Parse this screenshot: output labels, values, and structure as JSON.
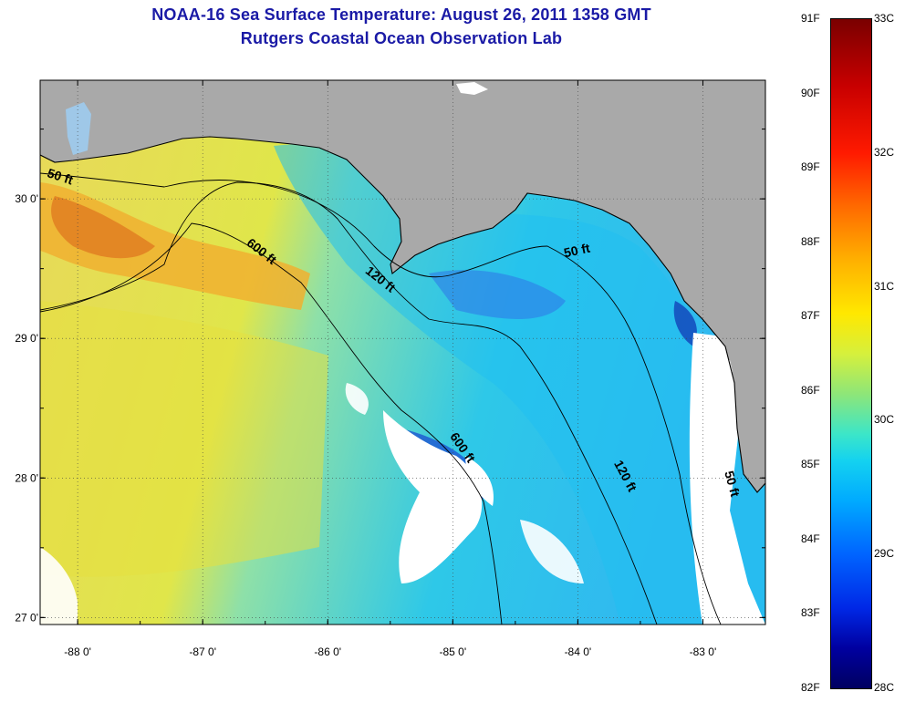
{
  "title": {
    "line1": "NOAA-16 Sea Surface Temperature:  August 26, 2011 1358 GMT",
    "line2": "Rutgers Coastal Ocean Observation Lab"
  },
  "map": {
    "lon_range": [
      -88.3,
      -82.5
    ],
    "lat_range": [
      26.95,
      30.85
    ],
    "x_ticks": [
      {
        "lon": -88,
        "label": "-88 0'"
      },
      {
        "lon": -87,
        "label": "-87 0'"
      },
      {
        "lon": -86,
        "label": "-86 0'"
      },
      {
        "lon": -85,
        "label": "-85 0'"
      },
      {
        "lon": -84,
        "label": "-84 0'"
      },
      {
        "lon": -83,
        "label": "-83 0'"
      }
    ],
    "y_ticks": [
      {
        "lat": 30,
        "label": "30 0'"
      },
      {
        "lat": 29,
        "label": "29 0'"
      },
      {
        "lat": 28,
        "label": "28 0'"
      },
      {
        "lat": 27,
        "label": "27 0'"
      }
    ],
    "contour_labels": [
      {
        "text": "50 ft",
        "lon": -88.15,
        "lat": 30.13,
        "rotate": 18
      },
      {
        "text": "600 ft",
        "lon": -86.55,
        "lat": 29.6,
        "rotate": 38
      },
      {
        "text": "120 ft",
        "lon": -85.6,
        "lat": 29.4,
        "rotate": 38
      },
      {
        "text": "50 ft",
        "lon": -84.0,
        "lat": 29.6,
        "rotate": -12
      },
      {
        "text": "600 ft",
        "lon": -84.95,
        "lat": 28.2,
        "rotate": 55
      },
      {
        "text": "120 ft",
        "lon": -83.65,
        "lat": 28.0,
        "rotate": 62
      },
      {
        "text": "50 ft",
        "lon": -82.8,
        "lat": 27.95,
        "rotate": 75
      }
    ],
    "colors": {
      "land": "#a9a9a9",
      "cloud": "#ffffff",
      "warm": "#f0a020",
      "mid": "#d8ea50",
      "cool": "#30d0e0",
      "cold": "#1040d0"
    }
  },
  "colorbar": {
    "fahrenheit": [
      "91F",
      "90F",
      "89F",
      "88F",
      "87F",
      "86F",
      "85F",
      "84F",
      "83F",
      "82F"
    ],
    "celsius": [
      "33C",
      "32C",
      "31C",
      "30C",
      "29C",
      "28C"
    ],
    "f_range": [
      82,
      91
    ],
    "c_range": [
      28,
      33
    ]
  }
}
